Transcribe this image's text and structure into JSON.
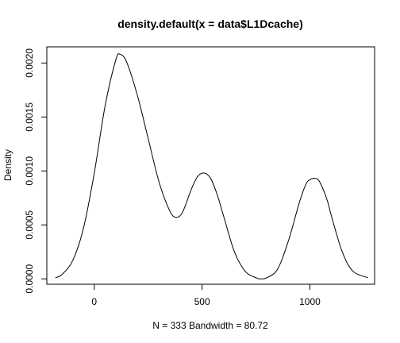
{
  "chart_data": {
    "type": "line",
    "title": "density.default(x = data$L1Dcache)",
    "xlabel": "N = 333   Bandwidth = 80.72",
    "ylabel": "Density",
    "xlim": [
      -220,
      1300
    ],
    "ylim": [
      -5e-05,
      0.00215
    ],
    "x_ticks": [
      0,
      500,
      1000
    ],
    "x_tick_labels": [
      "0",
      "500",
      "1000"
    ],
    "y_ticks": [
      0.0,
      0.0005,
      0.001,
      0.0015,
      0.002
    ],
    "y_tick_labels": [
      "0.0000",
      "0.0005",
      "0.0010",
      "0.0015",
      "0.0020"
    ],
    "grid": false,
    "series": [
      {
        "x": [
          -180,
          -150,
          -100,
          -50,
          0,
          50,
          100,
          120,
          150,
          200,
          250,
          300,
          350,
          380,
          410,
          450,
          480,
          510,
          540,
          570,
          600,
          650,
          700,
          750,
          770,
          800,
          850,
          900,
          950,
          980,
          1000,
          1030,
          1050,
          1080,
          1100,
          1150,
          1200,
          1270
        ],
        "y": [
          1e-05,
          4e-05,
          0.00017,
          0.00047,
          0.00098,
          0.0016,
          0.00203,
          0.00208,
          0.00201,
          0.0017,
          0.0013,
          0.0009,
          0.00063,
          0.00057,
          0.00062,
          0.00083,
          0.00095,
          0.00098,
          0.00093,
          0.00078,
          0.00058,
          0.00025,
          7e-05,
          1e-05,
          0.0,
          1e-05,
          9e-05,
          0.00035,
          0.0007,
          0.00087,
          0.00092,
          0.00093,
          0.00088,
          0.00073,
          0.00058,
          0.00025,
          7e-05,
          1e-05
        ]
      }
    ]
  }
}
